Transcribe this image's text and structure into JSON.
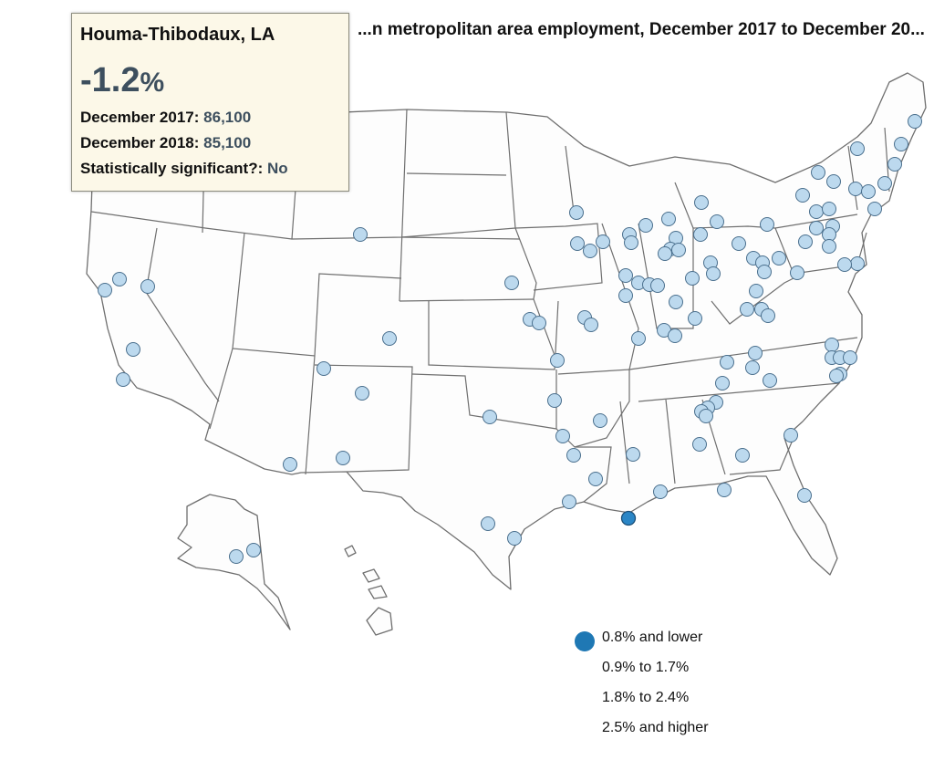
{
  "title": "...n metropolitan area employment, December 2017 to December 20...",
  "tooltip": {
    "area": "Houma-Thibodaux, LA",
    "change_value": "-1.2",
    "change_unit": "%",
    "row1_label": "December 2017:",
    "row1_value": "86,100",
    "row2_label": "December 2018:",
    "row2_value": "85,100",
    "row3_label": "Statistically significant?:",
    "row3_value": "No"
  },
  "legend": [
    {
      "label": "0.8% and lower",
      "color": "#1f78b4",
      "shown": true
    },
    {
      "label": "0.9% to 1.7%",
      "color": "#ffffff",
      "shown": false
    },
    {
      "label": "1.8% to 2.4%",
      "color": "#ffffff",
      "shown": false
    },
    {
      "label": "2.5% and higher",
      "color": "#ffffff",
      "shown": false
    }
  ],
  "selected_metro": "Houma-Thibodaux, LA",
  "colors": {
    "metro_fill": "#bcd9ee",
    "selected_fill": "#2b86c6",
    "tooltip_bg": "#fcf8e8"
  }
}
